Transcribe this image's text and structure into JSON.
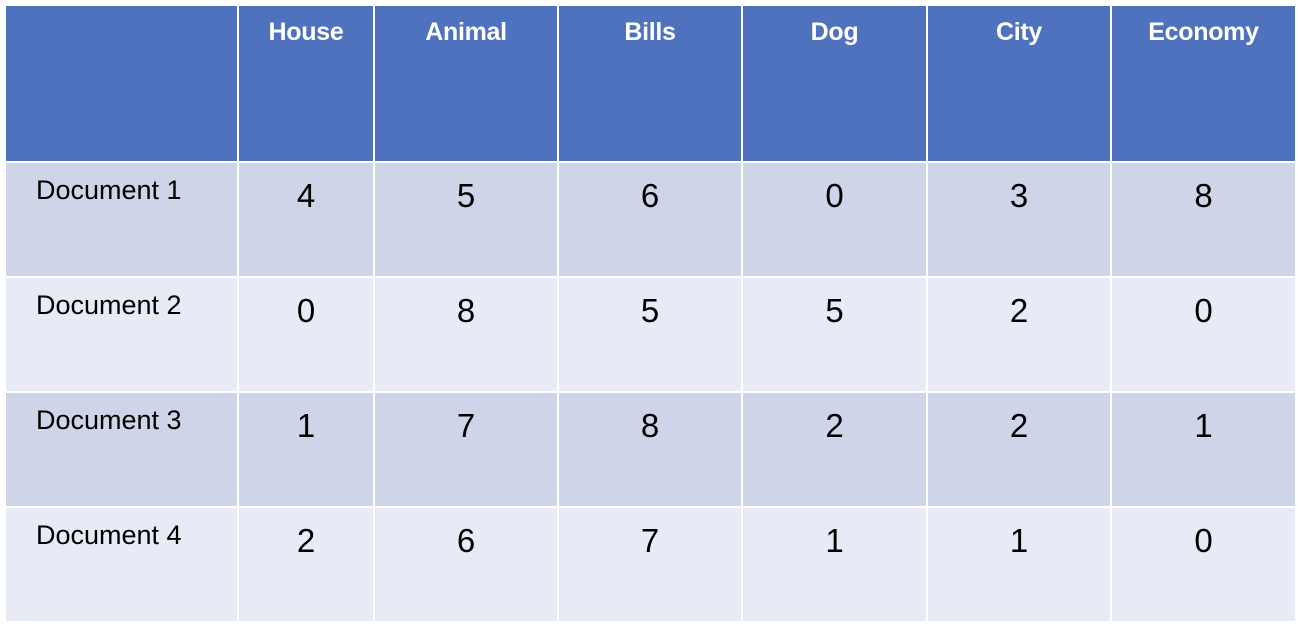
{
  "table": {
    "columns": [
      "House",
      "Animal",
      "Bills",
      "Dog",
      "City",
      "Economy"
    ],
    "rows": [
      {
        "label": "Document 1",
        "values": [
          "4",
          "5",
          "6",
          "0",
          "3",
          "8"
        ]
      },
      {
        "label": "Document 2",
        "values": [
          "0",
          "8",
          "5",
          "5",
          "2",
          "0"
        ]
      },
      {
        "label": "Document 3",
        "values": [
          "1",
          "7",
          "8",
          "2",
          "2",
          "1"
        ]
      },
      {
        "label": "Document 4",
        "values": [
          "2",
          "6",
          "7",
          "1",
          "1",
          "0"
        ]
      }
    ]
  },
  "colors": {
    "header_bg": "#4f72be",
    "header_text": "#ffffff",
    "row_odd_bg": "#cfd5e8",
    "row_even_bg": "#e8eaf5"
  }
}
